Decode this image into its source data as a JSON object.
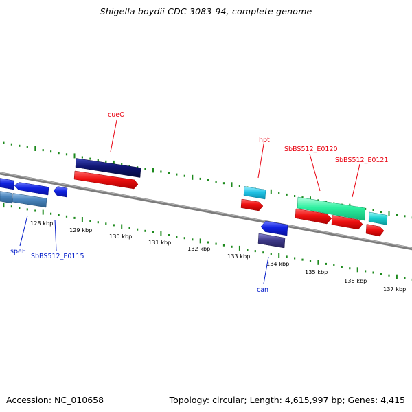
{
  "title": "Shigella boydii CDC 3083-94, complete genome",
  "footer": {
    "accession": "Accession: NC_010658",
    "topology": "Topology: circular; Length: 4,615,997 bp; Genes: 4,415"
  },
  "colors": {
    "backbone": "#7c7c7c",
    "tick": "#1d8a1d",
    "label_forward": "#e8000f",
    "label_reverse": "#001ac8",
    "cds_red": "#ee1111",
    "navy": "#0e1470",
    "blue": "#1022e0",
    "steel": "#4a85bd",
    "cyan": "#22c4e6",
    "teal": "#1ad2d2",
    "mint": "#2ef0a0",
    "purple": "#3e3a8a"
  },
  "ticks": [
    {
      "label": "128 kbp"
    },
    {
      "label": "129 kbp"
    },
    {
      "label": "130 kbp"
    },
    {
      "label": "131 kbp"
    },
    {
      "label": "132 kbp"
    },
    {
      "label": "133 kbp"
    },
    {
      "label": "134 kbp"
    },
    {
      "label": "135 kbp"
    },
    {
      "label": "136 kbp"
    },
    {
      "label": "137 kbp"
    }
  ],
  "features": [
    {
      "name": "cueO",
      "strand": "+",
      "color": "navy"
    },
    {
      "name": "hpt",
      "strand": "+",
      "color": "cyan"
    },
    {
      "name": "SbBS512_E0120",
      "strand": "+",
      "color": "mint"
    },
    {
      "name": "SbBS512_E0121",
      "strand": "+",
      "color": "teal"
    },
    {
      "name": "speE",
      "strand": "-",
      "color": "steel"
    },
    {
      "name": "SbBS512_E0115",
      "strand": "-",
      "color": "blue"
    },
    {
      "name": "can",
      "strand": "-",
      "color": "blue"
    }
  ]
}
